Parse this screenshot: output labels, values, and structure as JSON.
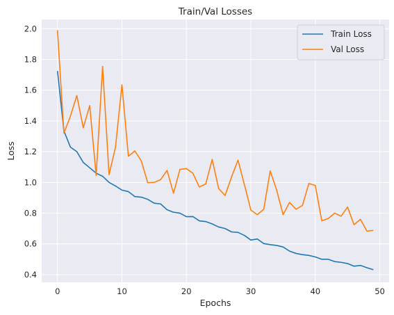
{
  "chart_data": {
    "type": "line",
    "title": "Train/Val Losses",
    "xlabel": "Epochs",
    "ylabel": "Loss",
    "xlim": [
      -2.45,
      51.45
    ],
    "ylim": [
      0.35,
      2.06
    ],
    "xticks": [
      0,
      10,
      20,
      30,
      40,
      50
    ],
    "yticks": [
      0.4,
      0.6,
      0.8,
      1.0,
      1.2,
      1.4,
      1.6,
      1.8,
      2.0
    ],
    "grid": true,
    "legend_position": "top-right",
    "background": "#eaeaf2",
    "x": [
      0,
      1,
      2,
      3,
      4,
      5,
      6,
      7,
      8,
      9,
      10,
      11,
      12,
      13,
      14,
      15,
      16,
      17,
      18,
      19,
      20,
      21,
      22,
      23,
      24,
      25,
      26,
      27,
      28,
      29,
      30,
      31,
      32,
      33,
      34,
      35,
      36,
      37,
      38,
      39,
      40,
      41,
      42,
      43,
      44,
      45,
      46,
      47,
      48,
      49
    ],
    "series": [
      {
        "name": "Train Loss",
        "color": "#1f77b4",
        "values": [
          1.725,
          1.335,
          1.23,
          1.2,
          1.13,
          1.095,
          1.06,
          1.04,
          1.0,
          0.977,
          0.95,
          0.94,
          0.908,
          0.904,
          0.89,
          0.865,
          0.86,
          0.822,
          0.806,
          0.8,
          0.777,
          0.778,
          0.75,
          0.745,
          0.73,
          0.71,
          0.7,
          0.678,
          0.675,
          0.655,
          0.625,
          0.632,
          0.602,
          0.595,
          0.59,
          0.58,
          0.553,
          0.538,
          0.53,
          0.525,
          0.515,
          0.5,
          0.5,
          0.485,
          0.48,
          0.472,
          0.455,
          0.46,
          0.445,
          0.432
        ]
      },
      {
        "name": "Val Loss",
        "color": "#ff7f0e",
        "values": [
          1.99,
          1.32,
          1.43,
          1.565,
          1.355,
          1.5,
          1.045,
          1.755,
          1.05,
          1.23,
          1.635,
          1.17,
          1.205,
          1.14,
          0.998,
          1.0,
          1.018,
          1.078,
          0.93,
          1.085,
          1.09,
          1.06,
          0.97,
          0.99,
          1.15,
          0.96,
          0.915,
          1.035,
          1.145,
          0.985,
          0.82,
          0.79,
          0.825,
          1.075,
          0.95,
          0.79,
          0.87,
          0.825,
          0.85,
          0.993,
          0.98,
          0.75,
          0.765,
          0.8,
          0.78,
          0.84,
          0.725,
          0.76,
          0.683,
          0.688
        ]
      }
    ]
  }
}
